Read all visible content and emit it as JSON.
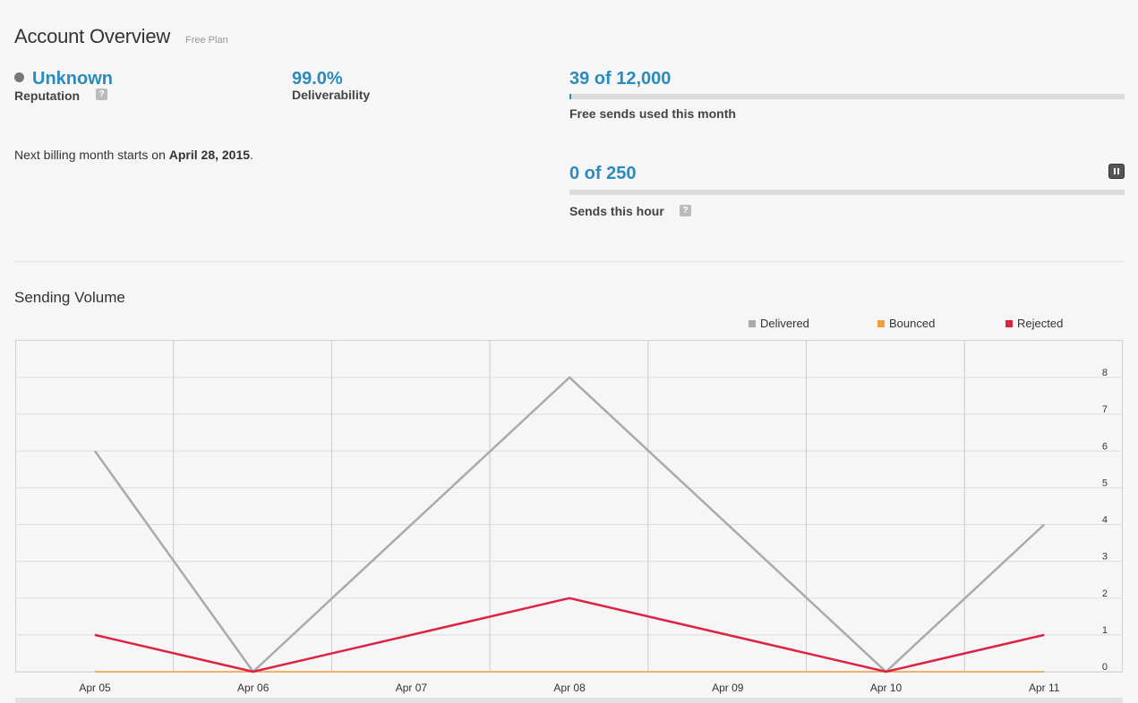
{
  "header": {
    "title": "Account Overview",
    "plan": "Free Plan"
  },
  "reputation": {
    "value": "Unknown",
    "label": "Reputation",
    "help": "?"
  },
  "deliverability": {
    "value": "99.0%",
    "label": "Deliverability"
  },
  "billing": {
    "prefix": "Next billing month starts on",
    "date": "April 28, 2015",
    "suffix": "."
  },
  "monthly_quota": {
    "value": "39 of 12,000",
    "label": "Free sends used this month",
    "fraction_used": 0.00325
  },
  "hourly_quota": {
    "value": "0 of 250",
    "label": "Sends this hour",
    "help": "?",
    "fraction_used": 0,
    "pause_icon": "pause-icon"
  },
  "sending_volume": {
    "title": "Sending Volume"
  },
  "chart_data": {
    "type": "line",
    "x": [
      "Apr 05",
      "Apr 06",
      "Apr 07",
      "Apr 08",
      "Apr 09",
      "Apr 10",
      "Apr 11"
    ],
    "series": [
      {
        "name": "Delivered",
        "color": "#aaaaaa",
        "values": [
          6,
          0,
          null,
          8,
          null,
          0,
          4
        ]
      },
      {
        "name": "Bounced",
        "color": "#f0a040",
        "values": [
          0,
          0,
          null,
          0,
          null,
          0,
          0
        ]
      },
      {
        "name": "Rejected",
        "color": "#dd2244",
        "values": [
          1,
          0,
          null,
          2,
          null,
          0,
          1
        ]
      }
    ],
    "points_x": [
      "Apr 05",
      "Apr 06",
      "Apr 08",
      "Apr 10",
      "Apr 11"
    ],
    "y_ticks": [
      0,
      1,
      2,
      3,
      4,
      5,
      6,
      7,
      8
    ],
    "ylim": [
      0,
      8
    ],
    "y_axis_side": "right",
    "legend_position": "top-right",
    "grid": true
  },
  "colors": {
    "accent": "#2a8bbc",
    "reputation_dot": "#777777"
  }
}
